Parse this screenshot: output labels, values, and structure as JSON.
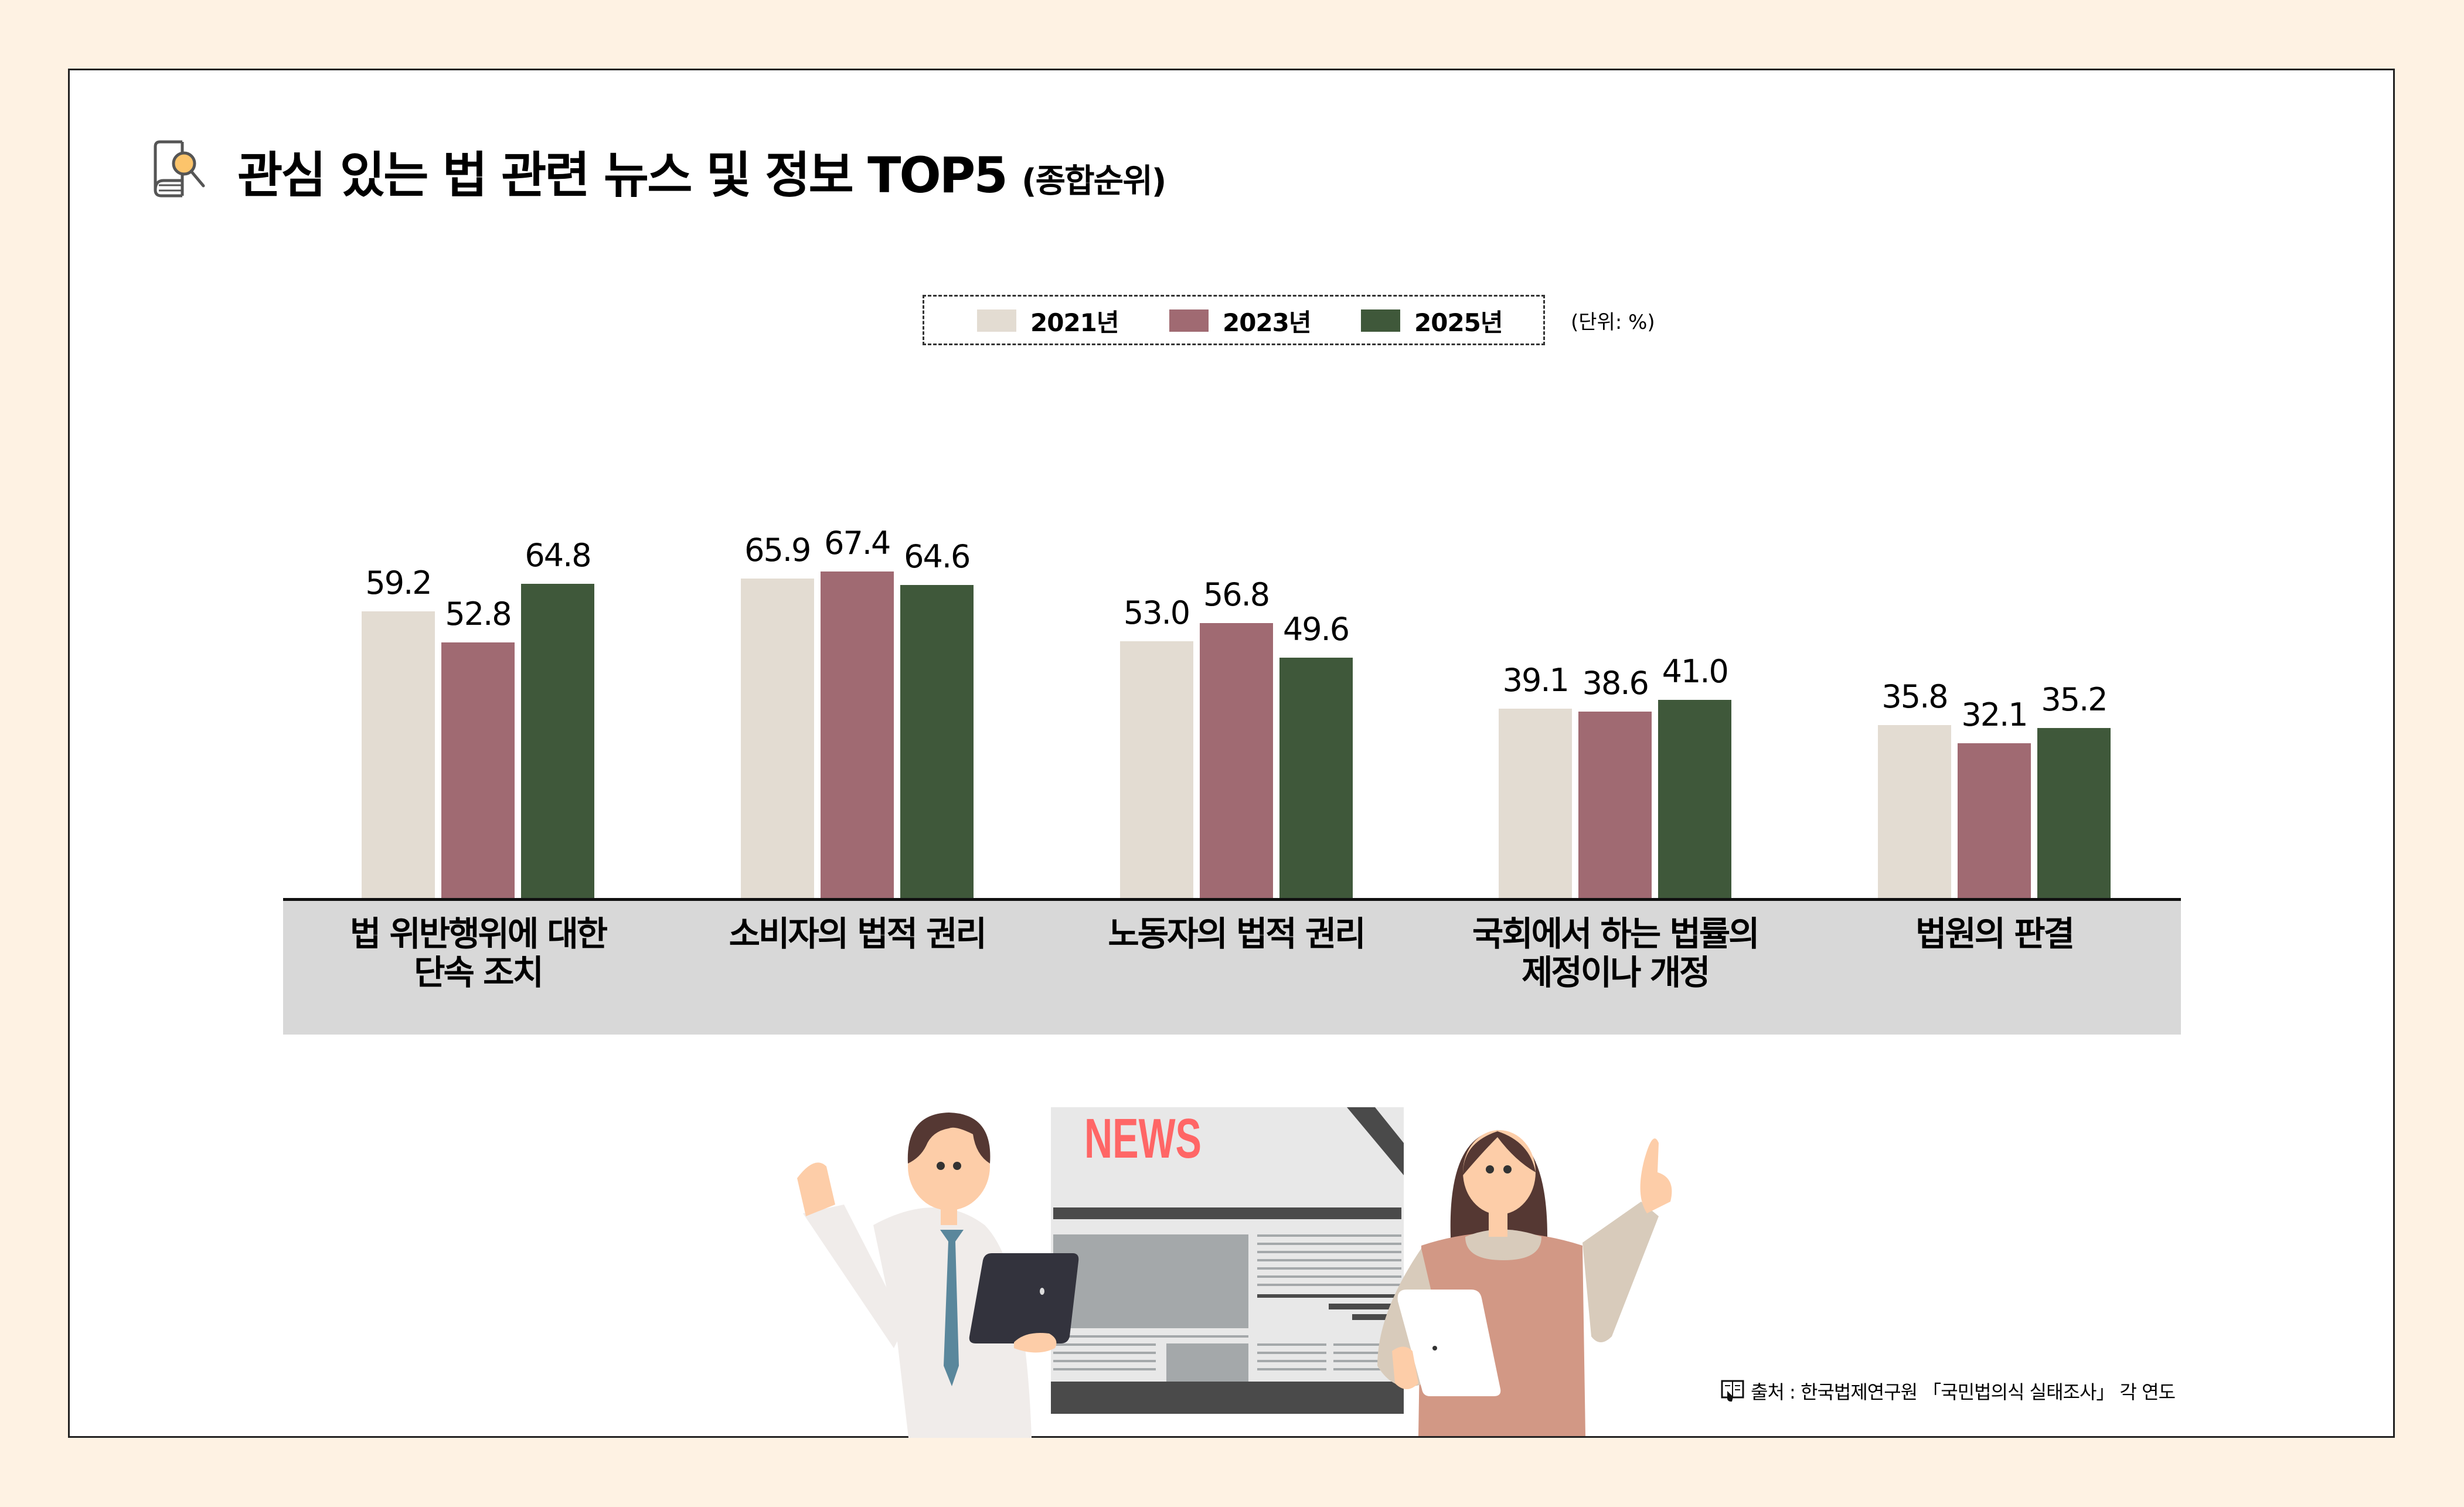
{
  "header": {
    "title": "관심 있는 법 관련 뉴스 및 정보 TOP5",
    "subtitle": "(종합순위)",
    "icon": "book-search-icon"
  },
  "legend": {
    "items": [
      {
        "label": "2021년",
        "color": "#e3dcd2"
      },
      {
        "label": "2023년",
        "color": "#a06a72"
      },
      {
        "label": "2025년",
        "color": "#3f583a"
      }
    ],
    "unit": "(단위: %)"
  },
  "chart_data": {
    "type": "bar",
    "title": "관심 있는 법 관련 뉴스 및 정보 TOP5 (종합순위)",
    "xlabel": "",
    "ylabel": "%",
    "unit": "%",
    "grid": false,
    "legend_position": "top",
    "categories": [
      "법 위반행위에 대한 단속 조치",
      "소비자의 법적 권리",
      "노동자의 법적 권리",
      "국회에서 하는 법률의 제정이나 개정",
      "법원의 판결"
    ],
    "category_lines": [
      [
        "법 위반행위에 대한",
        "단속 조치"
      ],
      [
        "소비자의 법적 권리"
      ],
      [
        "노동자의 법적 권리"
      ],
      [
        "국회에서 하는 법률의",
        "제정이나 개정"
      ],
      [
        "법원의 판결"
      ]
    ],
    "series": [
      {
        "name": "2021년",
        "color": "#e3dcd2",
        "values": [
          59.2,
          65.9,
          53.0,
          39.1,
          35.8
        ],
        "labels": [
          "59.2",
          "65.9",
          "53.0",
          "39.1",
          "35.8"
        ]
      },
      {
        "name": "2023년",
        "color": "#a06a72",
        "values": [
          52.8,
          67.4,
          56.8,
          38.6,
          32.1
        ],
        "labels": [
          "52.8",
          "67.4",
          "56.8",
          "38.6",
          "32.1"
        ]
      },
      {
        "name": "2025년",
        "color": "#3f583a",
        "values": [
          64.8,
          64.6,
          49.6,
          41.0,
          35.2
        ],
        "labels": [
          "64.8",
          "64.6",
          "49.6",
          "41.0",
          "35.2"
        ]
      }
    ]
  },
  "illustration": {
    "newspaper_headline": "NEWS",
    "headline_color": "#ff6666"
  },
  "footer": {
    "source": "출처 : 한국법제연구원 「국민법의식 실태조사」 각 연도"
  }
}
